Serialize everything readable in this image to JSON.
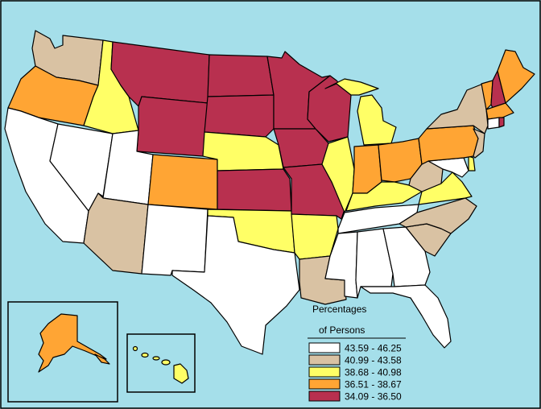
{
  "legend": {
    "title_line1": "Percentages",
    "title_line2": "of Persons",
    "items": [
      {
        "label": "43.59 - 46.25",
        "color": "#ffffff"
      },
      {
        "label": "40.99 - 43.58",
        "color": "#d9c2a3"
      },
      {
        "label": "38.68 - 40.98",
        "color": "#ffff66"
      },
      {
        "label": "36.51 - 38.67",
        "color": "#ffa534"
      },
      {
        "label": "34.09 - 36.50",
        "color": "#b8304f"
      }
    ]
  },
  "colors": {
    "ocean": "#a5dfea",
    "border": "#000000"
  }
}
